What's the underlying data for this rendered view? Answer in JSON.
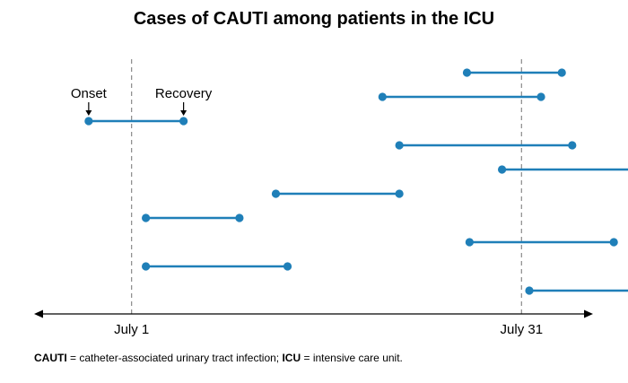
{
  "chart_data": {
    "type": "timeline",
    "title": "Cases of CAUTI among patients in the ICU",
    "xlim": [
      -6.5,
      36.5
    ],
    "ylim": [
      0,
      10
    ],
    "grid": false,
    "x_ticks": [
      {
        "value": 1,
        "label": "July 1"
      },
      {
        "value": 31,
        "label": "July 31"
      }
    ],
    "reference_lines_at": [
      1,
      31
    ],
    "series_color": "#1f7fb8",
    "annotations": [
      {
        "text": "Onset",
        "points_to": "case1.onset"
      },
      {
        "text": "Recovery",
        "points_to": "case1.recovery"
      }
    ],
    "cases": [
      {
        "row": 1,
        "onset": 26.8,
        "recovery": 34.1
      },
      {
        "row": 2,
        "onset": 20.3,
        "recovery": 32.5
      },
      {
        "row": 3,
        "onset": -2.3,
        "recovery": 5.0
      },
      {
        "row": 4,
        "onset": 21.6,
        "recovery": 34.9
      },
      {
        "row": 5,
        "onset": 29.5,
        "recovery": 42.0
      },
      {
        "row": 6,
        "onset": 12.1,
        "recovery": 21.6
      },
      {
        "row": 7,
        "onset": 2.1,
        "recovery": 9.3
      },
      {
        "row": 8,
        "onset": 27.0,
        "recovery": 38.1
      },
      {
        "row": 9,
        "onset": 2.1,
        "recovery": 13.0
      },
      {
        "row": 10,
        "onset": 31.6,
        "recovery": 39.8
      }
    ]
  },
  "footnote": {
    "abbr1": "CAUTI",
    "def1": " = catheter-associated urinary tract infection; ",
    "abbr2": "ICU",
    "def2": " = intensive care unit."
  }
}
